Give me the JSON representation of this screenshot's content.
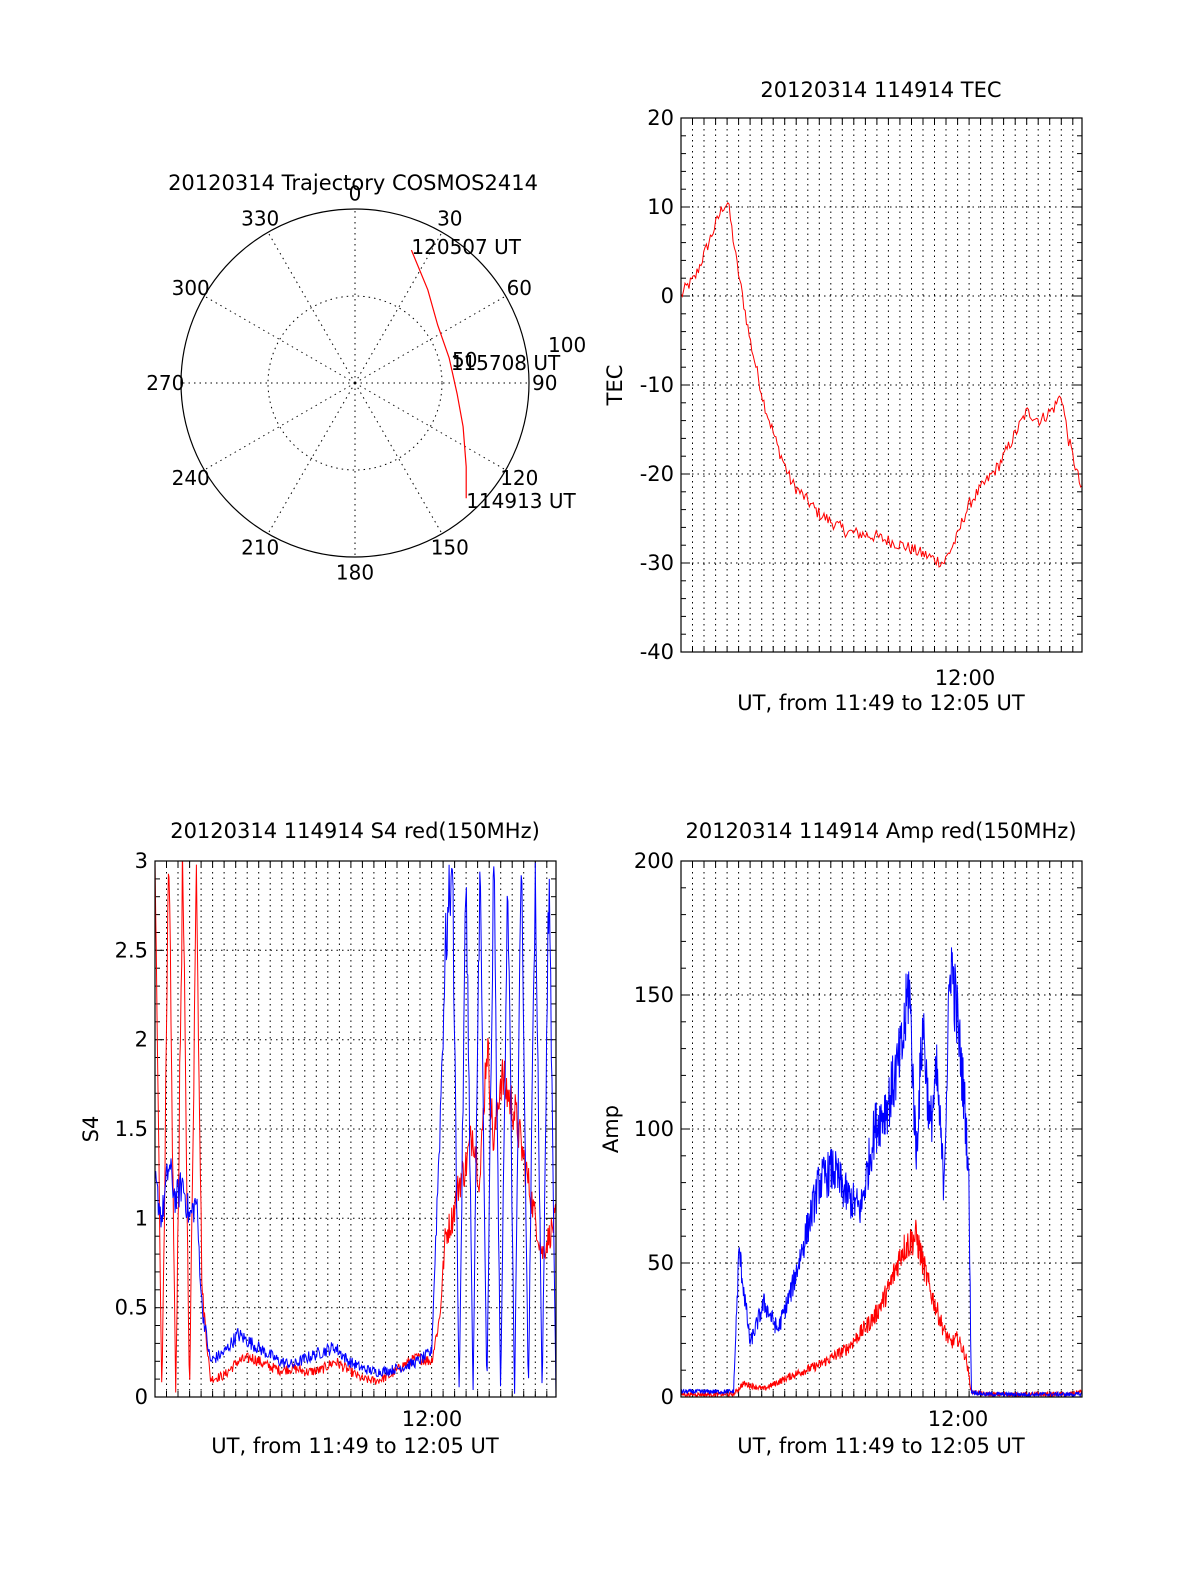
{
  "colors": {
    "red": "#ff0000",
    "blue": "#0000ff",
    "axis": "#000000",
    "background": "#ffffff"
  },
  "chart_data": [
    {
      "id": "trajectory",
      "type": "polar",
      "title": "20120314 Trajectory COSMOS2414",
      "azimuth_labels": [
        "0",
        "30",
        "60",
        "90",
        "120",
        "150",
        "180",
        "210",
        "240",
        "270",
        "300",
        "330"
      ],
      "azimuth_values": [
        0,
        30,
        60,
        90,
        120,
        150,
        180,
        210,
        240,
        270,
        300,
        330
      ],
      "ring_labels": [
        "50",
        "100"
      ],
      "rings": [
        50,
        100
      ],
      "series": [
        {
          "name": "satellite track",
          "color": "red",
          "points": [
            {
              "az": 23,
              "zen": 83
            },
            {
              "az": 38,
              "zen": 68
            },
            {
              "az": 55,
              "zen": 58
            },
            {
              "az": 75,
              "zen": 56
            },
            {
              "az": 96,
              "zen": 59
            },
            {
              "az": 112,
              "zen": 67
            },
            {
              "az": 127,
              "zen": 80
            },
            {
              "az": 136,
              "zen": 92
            }
          ]
        }
      ],
      "annotations": [
        {
          "text": "120507 UT",
          "az": 23,
          "zen": 83
        },
        {
          "text": "115708 UT",
          "az": 80,
          "zen": 57
        },
        {
          "text": "114913 UT",
          "az": 136,
          "zen": 92
        }
      ]
    },
    {
      "id": "tec",
      "type": "line",
      "title": "20120314 114914 TEC",
      "xlabel": "UT, from 11:49 to 12:05 UT",
      "ylabel": "TEC",
      "xlim": [
        11.8,
        12.09
      ],
      "ylim": [
        -40,
        20
      ],
      "yticks": [
        -40,
        -30,
        -20,
        -10,
        0,
        10,
        20
      ],
      "xticks": [
        {
          "value": 12.0,
          "label": "12:00"
        }
      ],
      "xgrid_step_minutes": 0.5,
      "series": [
        {
          "name": "TEC",
          "color": "red",
          "x": [
            11.8,
            11.804,
            11.81,
            11.815,
            11.82,
            11.825,
            11.83,
            11.834,
            11.84,
            11.85,
            11.86,
            11.87,
            11.88,
            11.9,
            11.92,
            11.94,
            11.96,
            11.975,
            11.99,
            12.0,
            12.004,
            12.01,
            12.02,
            12.03,
            12.04,
            12.05,
            12.06,
            12.07,
            12.075,
            12.08,
            12.085,
            12.09
          ],
          "y": [
            0,
            1,
            2,
            4,
            6,
            8,
            10,
            10.5,
            4,
            -5,
            -12,
            -17,
            -21,
            -24.5,
            -26.5,
            -27,
            -28,
            -29,
            -30,
            -27,
            -25,
            -23,
            -21,
            -19,
            -16,
            -13,
            -14,
            -12.5,
            -11,
            -16,
            -19,
            -22
          ]
        }
      ]
    },
    {
      "id": "s4",
      "type": "line",
      "title": "20120314 114914 S4 red(150MHz)",
      "xlabel": "UT, from 11:49 to 12:05 UT",
      "ylabel": "S4",
      "xlim": [
        11.8,
        12.09
      ],
      "ylim": [
        0,
        3
      ],
      "yticks": [
        0,
        0.5,
        1,
        1.5,
        2,
        2.5,
        3
      ],
      "xticks": [
        {
          "value": 12.0,
          "label": "12:00"
        }
      ],
      "xgrid_step_minutes": 0.5,
      "series": [
        {
          "name": "red (150MHz)",
          "color": "red",
          "x": [
            11.8,
            11.805,
            11.81,
            11.815,
            11.82,
            11.825,
            11.83,
            11.834,
            11.84,
            11.85,
            11.86,
            11.87,
            11.88,
            11.89,
            11.9,
            11.91,
            11.92,
            11.93,
            11.94,
            11.95,
            11.96,
            11.97,
            11.98,
            11.99,
            12.0,
            12.006,
            12.01,
            12.015,
            12.02,
            12.025,
            12.03,
            12.035,
            12.04,
            12.045,
            12.05,
            12.06,
            12.07,
            12.08,
            12.09
          ],
          "y": [
            3,
            0,
            3,
            0,
            3,
            0,
            3,
            0.6,
            0.1,
            0.12,
            0.2,
            0.22,
            0.18,
            0.15,
            0.16,
            0.14,
            0.15,
            0.2,
            0.15,
            0.1,
            0.09,
            0.12,
            0.18,
            0.22,
            0.2,
            0.45,
            0.9,
            1.0,
            1.2,
            1.3,
            1.5,
            1.2,
            2.0,
            1.4,
            1.8,
            1.6,
            1.2,
            0.8,
            1.0
          ]
        },
        {
          "name": "blue",
          "color": "blue",
          "x": [
            11.8,
            11.805,
            11.81,
            11.815,
            11.82,
            11.825,
            11.83,
            11.834,
            11.84,
            11.85,
            11.86,
            11.87,
            11.88,
            11.89,
            11.9,
            11.91,
            11.92,
            11.93,
            11.94,
            11.95,
            11.96,
            11.97,
            11.98,
            11.99,
            12.0,
            12.006,
            12.01,
            12.015,
            12.02,
            12.025,
            12.03,
            12.035,
            12.04,
            12.045,
            12.05,
            12.055,
            12.06,
            12.065,
            12.07,
            12.075,
            12.08,
            12.085,
            12.09
          ],
          "y": [
            1.2,
            1.0,
            1.3,
            1.1,
            1.2,
            1.0,
            1.1,
            0.5,
            0.2,
            0.25,
            0.35,
            0.3,
            0.25,
            0.2,
            0.18,
            0.22,
            0.25,
            0.28,
            0.2,
            0.16,
            0.14,
            0.15,
            0.17,
            0.2,
            0.25,
            1.5,
            2.5,
            3,
            0,
            3,
            0,
            3,
            0,
            3,
            0,
            3,
            0,
            3,
            0,
            3,
            0,
            3,
            0
          ]
        }
      ]
    },
    {
      "id": "amp",
      "type": "line",
      "title": "20120314 114914 Amp red(150MHz)",
      "xlabel": "UT, from 11:49 to 12:05 UT",
      "ylabel": "Amp",
      "xlim": [
        11.8,
        12.09
      ],
      "ylim": [
        0,
        200
      ],
      "yticks": [
        0,
        50,
        100,
        150,
        200
      ],
      "xticks": [
        {
          "value": 12.0,
          "label": "12:00"
        }
      ],
      "xgrid_step_minutes": 0.5,
      "series": [
        {
          "name": "red (150MHz)",
          "color": "red",
          "x": [
            11.8,
            11.82,
            11.838,
            11.845,
            11.86,
            11.88,
            11.9,
            11.92,
            11.94,
            11.95,
            11.96,
            11.97,
            11.98,
            11.99,
            11.995,
            12.0,
            12.006,
            12.01,
            12.02,
            12.04,
            12.06,
            12.08,
            12.09
          ],
          "y": [
            1,
            1,
            1,
            5,
            3,
            8,
            12,
            18,
            30,
            40,
            55,
            60,
            40,
            25,
            20,
            22,
            15,
            2,
            1,
            1,
            1,
            1,
            2
          ]
        },
        {
          "name": "blue",
          "color": "blue",
          "x": [
            11.8,
            11.82,
            11.838,
            11.842,
            11.85,
            11.86,
            11.87,
            11.88,
            11.89,
            11.9,
            11.91,
            11.92,
            11.93,
            11.94,
            11.95,
            11.96,
            11.965,
            11.97,
            11.975,
            11.98,
            11.985,
            11.99,
            11.995,
            12.0,
            12.005,
            12.008,
            12.01,
            12.02,
            12.04,
            12.06,
            12.08,
            12.09
          ],
          "y": [
            2,
            2,
            2,
            55,
            20,
            35,
            25,
            40,
            60,
            80,
            85,
            75,
            70,
            100,
            110,
            130,
            155,
            90,
            140,
            100,
            120,
            80,
            165,
            140,
            110,
            85,
            2,
            1,
            1,
            1,
            1,
            1
          ]
        }
      ]
    }
  ]
}
